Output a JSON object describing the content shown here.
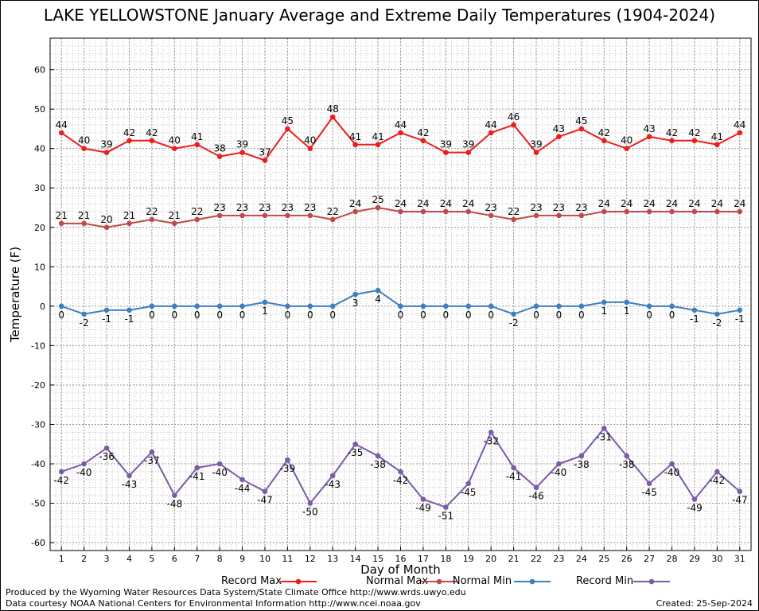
{
  "title": "LAKE YELLOWSTONE January Average and Extreme Daily Temperatures (1904-2024)",
  "footer": {
    "produced_by": "Produced by the Wyoming Water Resources Data System/State Climate Office http://www.wrds.uwyo.edu",
    "data_courtesy": "Data courtesy NOAA National Centers for Environmental Information http://www.ncei.noaa.gov",
    "created": "Created:  25-Sep-2024"
  },
  "colors": {
    "record_max": "#ee1c1c",
    "normal_max": "#c04a4a",
    "normal_min": "#3f7fbf",
    "record_min": "#7b5ba8",
    "grid": "#999999"
  },
  "chart_data": {
    "type": "line",
    "xlabel": "Day of Month",
    "ylabel": "Temperature (F)",
    "x": [
      1,
      2,
      3,
      4,
      5,
      6,
      7,
      8,
      9,
      10,
      11,
      12,
      13,
      14,
      15,
      16,
      17,
      18,
      19,
      20,
      21,
      22,
      23,
      24,
      25,
      26,
      27,
      28,
      29,
      30,
      31
    ],
    "xlim": [
      0.5,
      31.5
    ],
    "ylim": [
      -62,
      68
    ],
    "yticks": [
      -60,
      -50,
      -40,
      -30,
      -20,
      -10,
      0,
      10,
      20,
      30,
      40,
      50,
      60
    ],
    "grid": true,
    "legend_position": "bottom",
    "series": [
      {
        "name": "Record Max",
        "key": "record_max",
        "values": [
          44,
          40,
          39,
          42,
          42,
          40,
          41,
          38,
          39,
          37,
          45,
          40,
          48,
          41,
          41,
          44,
          42,
          39,
          39,
          44,
          46,
          39,
          43,
          45,
          42,
          40,
          43,
          42,
          42,
          41,
          44
        ]
      },
      {
        "name": "Normal Max",
        "key": "normal_max",
        "values": [
          21,
          21,
          20,
          21,
          22,
          21,
          22,
          23,
          23,
          23,
          23,
          23,
          22,
          24,
          25,
          24,
          24,
          24,
          24,
          23,
          22,
          23,
          23,
          23,
          24,
          24,
          24,
          24,
          24,
          24,
          24
        ]
      },
      {
        "name": "Normal Min",
        "key": "normal_min",
        "values": [
          0,
          -2,
          -1,
          -1,
          0,
          0,
          0,
          0,
          0,
          1,
          0,
          0,
          0,
          3,
          4,
          0,
          0,
          0,
          0,
          0,
          -2,
          0,
          0,
          0,
          1,
          1,
          0,
          0,
          -1,
          -2,
          -1
        ]
      },
      {
        "name": "Record Min",
        "key": "record_min",
        "values": [
          -42,
          -40,
          -36,
          -43,
          -37,
          -48,
          -41,
          -40,
          -44,
          -47,
          -39,
          -50,
          -43,
          -35,
          -38,
          -42,
          -49,
          -51,
          -45,
          -32,
          -41,
          -46,
          -40,
          -38,
          -31,
          -38,
          -45,
          -40,
          -49,
          -42,
          -47
        ]
      }
    ]
  }
}
